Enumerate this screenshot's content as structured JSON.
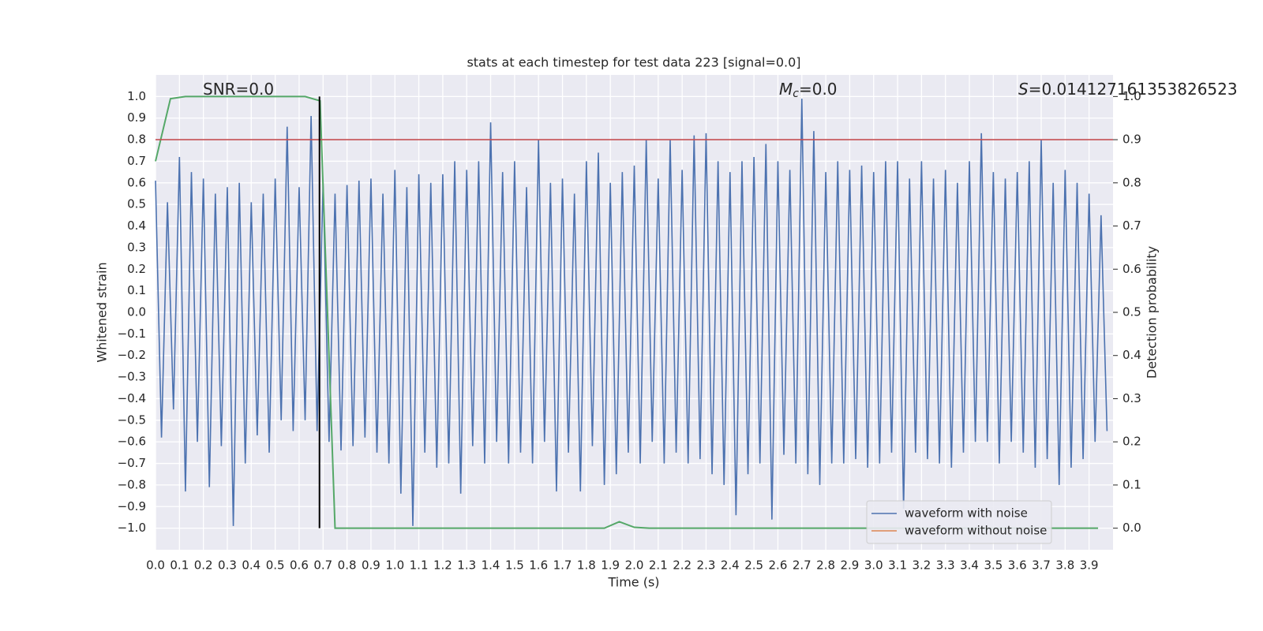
{
  "chart_data": {
    "type": "line",
    "title": "stats at each timestep for test data 223 [signal=0.0]",
    "xlabel": "Time (s)",
    "ylabel": "Whitened strain",
    "y2label": "Detection probability",
    "xlim": [
      0,
      4.0
    ],
    "ylim": [
      -1.1,
      1.1
    ],
    "y2lim": [
      -0.05,
      1.05
    ],
    "xticks": [
      {
        "value": 0,
        "label": "0.0"
      },
      0.1,
      0.2,
      0.3,
      0.4,
      0.5,
      0.6,
      0.7,
      0.8,
      0.9,
      {
        "value": 1,
        "label": "1.0"
      },
      1.1,
      1.2,
      1.3,
      1.4,
      1.5,
      1.6,
      1.7,
      1.8,
      1.9,
      {
        "value": 2,
        "label": "2.0"
      },
      2.1,
      2.2,
      2.3,
      2.4,
      2.5,
      2.6,
      2.7,
      2.8,
      2.9,
      {
        "value": 3,
        "label": "3.0"
      },
      3.1,
      3.2,
      3.3,
      3.4,
      3.5,
      3.6,
      3.7,
      3.8,
      3.9
    ],
    "yticks": [
      {
        "value": -1,
        "label": "−1.0"
      },
      {
        "value": -0.9,
        "label": "−0.9"
      },
      {
        "value": -0.8,
        "label": "−0.8"
      },
      {
        "value": -0.7,
        "label": "−0.7"
      },
      {
        "value": -0.6,
        "label": "−0.6"
      },
      {
        "value": -0.5,
        "label": "−0.5"
      },
      {
        "value": -0.4,
        "label": "−0.4"
      },
      {
        "value": -0.3,
        "label": "−0.3"
      },
      {
        "value": -0.2,
        "label": "−0.2"
      },
      {
        "value": -0.1,
        "label": "−0.1"
      },
      {
        "value": 0,
        "label": "0.0"
      },
      0.1,
      0.2,
      0.3,
      0.4,
      0.5,
      0.6,
      0.7,
      0.8,
      0.9,
      {
        "value": 1,
        "label": "1.0"
      }
    ],
    "y2ticks": [
      {
        "value": 0,
        "label": "0.0"
      },
      0.1,
      0.2,
      0.3,
      0.4,
      0.5,
      0.6,
      0.7,
      0.8,
      0.9,
      {
        "value": 1,
        "label": "1.0"
      }
    ],
    "grid": true,
    "legend_position": "lower right",
    "series": [
      {
        "name": "waveform with noise",
        "color": "#4c72b0",
        "x": [
          0,
          0.025,
          0.05,
          0.075,
          0.1,
          0.125,
          0.15,
          0.175,
          0.2,
          0.225,
          0.25,
          0.275,
          0.3,
          0.325,
          0.35,
          0.375,
          0.4,
          0.425,
          0.45,
          0.475,
          0.5,
          0.525,
          0.55,
          0.575,
          0.6,
          0.625,
          0.65,
          0.675,
          0.7,
          0.725,
          0.75,
          0.775,
          0.8,
          0.825,
          0.85,
          0.875,
          0.9,
          0.925,
          0.95,
          0.975,
          1,
          1.025,
          1.05,
          1.075,
          1.1,
          1.125,
          1.15,
          1.175,
          1.2,
          1.225,
          1.25,
          1.275,
          1.3,
          1.325,
          1.35,
          1.375,
          1.4,
          1.425,
          1.45,
          1.475,
          1.5,
          1.525,
          1.55,
          1.575,
          1.6,
          1.625,
          1.65,
          1.675,
          1.7,
          1.725,
          1.75,
          1.775,
          1.8,
          1.825,
          1.85,
          1.875,
          1.9,
          1.925,
          1.95,
          1.975,
          2,
          2.025,
          2.05,
          2.075,
          2.1,
          2.125,
          2.15,
          2.175,
          2.2,
          2.225,
          2.25,
          2.275,
          2.3,
          2.325,
          2.35,
          2.375,
          2.4,
          2.425,
          2.45,
          2.475,
          2.5,
          2.525,
          2.55,
          2.575,
          2.6,
          2.625,
          2.65,
          2.675,
          2.7,
          2.725,
          2.75,
          2.775,
          2.8,
          2.825,
          2.85,
          2.875,
          2.9,
          2.925,
          2.95,
          2.975,
          3,
          3.025,
          3.05,
          3.075,
          3.1,
          3.125,
          3.15,
          3.175,
          3.2,
          3.225,
          3.25,
          3.275,
          3.3,
          3.325,
          3.35,
          3.375,
          3.4,
          3.425,
          3.45,
          3.475,
          3.5,
          3.525,
          3.55,
          3.575,
          3.6,
          3.625,
          3.65,
          3.675,
          3.7,
          3.725,
          3.75,
          3.775,
          3.8,
          3.825,
          3.85,
          3.875,
          3.9,
          3.925,
          3.95,
          3.975
        ],
        "values": [
          0.61,
          -0.58,
          0.51,
          -0.45,
          0.72,
          -0.83,
          0.65,
          -0.6,
          0.62,
          -0.81,
          0.55,
          -0.62,
          0.58,
          -0.99,
          0.6,
          -0.7,
          0.51,
          -0.57,
          0.55,
          -0.65,
          0.62,
          -0.5,
          0.86,
          -0.55,
          0.58,
          -0.5,
          0.91,
          -0.55,
          0.6,
          -0.6,
          0.55,
          -0.64,
          0.59,
          -0.62,
          0.61,
          -0.58,
          0.62,
          -0.65,
          0.55,
          -0.7,
          0.66,
          -0.84,
          0.58,
          -0.99,
          0.64,
          -0.65,
          0.6,
          -0.72,
          0.64,
          -0.7,
          0.7,
          -0.84,
          0.66,
          -0.62,
          0.7,
          -0.7,
          0.88,
          -0.6,
          0.65,
          -0.7,
          0.7,
          -0.65,
          0.58,
          -0.7,
          0.8,
          -0.6,
          0.6,
          -0.83,
          0.62,
          -0.65,
          0.55,
          -0.83,
          0.7,
          -0.62,
          0.74,
          -0.8,
          0.6,
          -0.75,
          0.65,
          -0.65,
          0.68,
          -0.7,
          0.8,
          -0.6,
          0.62,
          -0.7,
          0.8,
          -0.65,
          0.66,
          -0.7,
          0.82,
          -0.68,
          0.83,
          -0.75,
          0.7,
          -0.8,
          0.65,
          -0.94,
          0.7,
          -0.75,
          0.72,
          -0.7,
          0.78,
          -0.96,
          0.7,
          -0.66,
          0.66,
          -0.7,
          0.99,
          -0.75,
          0.84,
          -0.8,
          0.65,
          -0.7,
          0.7,
          -0.7,
          0.66,
          -0.68,
          0.68,
          -0.72,
          0.65,
          -0.7,
          0.7,
          -0.65,
          0.7,
          -0.91,
          0.62,
          -0.65,
          0.7,
          -0.68,
          0.62,
          -0.7,
          0.66,
          -0.72,
          0.6,
          -0.65,
          0.7,
          -0.6,
          0.83,
          -0.6,
          0.65,
          -0.7,
          0.62,
          -0.6,
          0.65,
          -0.65,
          0.7,
          -0.72,
          0.8,
          -0.68,
          0.6,
          -0.8,
          0.66,
          -0.72,
          0.6,
          -0.68,
          0.55,
          -0.6,
          0.45,
          -0.55
        ]
      },
      {
        "name": "waveform without noise",
        "color": "#dd8452"
      },
      {
        "color": "#55a868",
        "axis": "y2",
        "x": [
          0,
          0.0625,
          0.125,
          0.1875,
          0.25,
          0.3125,
          0.375,
          0.4375,
          0.5,
          0.5625,
          0.625,
          0.6875,
          0.75,
          0.8125,
          0.875,
          0.9375,
          1,
          1.0625,
          1.125,
          1.1875,
          1.25,
          1.3125,
          1.375,
          1.4375,
          1.5,
          1.5625,
          1.625,
          1.6875,
          1.75,
          1.8125,
          1.875,
          1.9375,
          2,
          2.0625,
          2.125,
          2.1875,
          2.25,
          2.3125,
          2.375,
          2.4375,
          2.5,
          2.5625,
          2.625,
          2.6875,
          2.75,
          2.8125,
          2.875,
          2.9375,
          3,
          3.0625,
          3.125,
          3.1875,
          3.25,
          3.3125,
          3.375,
          3.4375,
          3.5,
          3.5625,
          3.625,
          3.6875,
          3.75,
          3.8125,
          3.875,
          3.9375
        ],
        "values": [
          0.85,
          0.995,
          1.0,
          1.0,
          1.0,
          1.0,
          1.0,
          1.0,
          1.0,
          1.0,
          1.0,
          0.99,
          0,
          0,
          0,
          0,
          0,
          0,
          0,
          0,
          0,
          0,
          0,
          0,
          0,
          0,
          0,
          0,
          0,
          0,
          0,
          0.015,
          0.002,
          0,
          0,
          0,
          0,
          0,
          0,
          0,
          0,
          0,
          0,
          0,
          0,
          0,
          0,
          0,
          0,
          0,
          0,
          0,
          0,
          0,
          0,
          0,
          0,
          0,
          0,
          0,
          0,
          0,
          0,
          0
        ]
      }
    ],
    "hlines": [
      {
        "axis": "y2",
        "value": 0.9,
        "color": "#c44e52"
      }
    ],
    "vlines": [
      {
        "x": 0.685,
        "ymin": -1,
        "ymax": 1,
        "color": "#000000"
      }
    ],
    "annotations": [
      {
        "text": "SNR=0.0"
      },
      {
        "symbol": "M",
        "subscript": "c",
        "text": "=0.0"
      },
      {
        "symbol": "S",
        "text": "=0.014127161353826523"
      }
    ]
  }
}
